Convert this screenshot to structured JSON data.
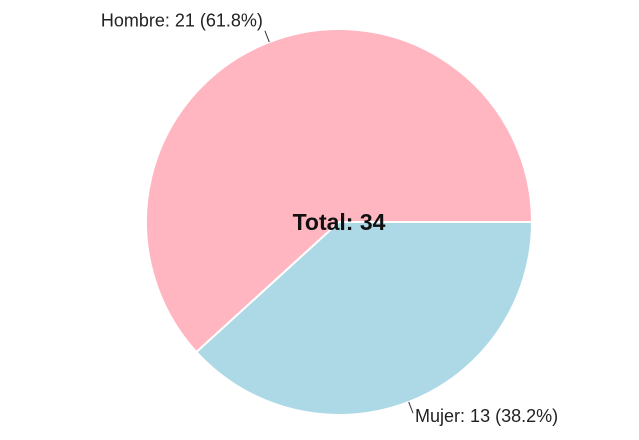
{
  "chart_data": {
    "type": "pie",
    "categories": [
      "Hombre",
      "Mujer"
    ],
    "values": [
      21,
      13
    ],
    "value_labels": [
      "Hombre: 21 (61.8%)",
      "Mujer: 13 (38.2%)"
    ],
    "colors": [
      "#ffb6c1",
      "#add8e6"
    ],
    "center_label": "Total: 34"
  }
}
